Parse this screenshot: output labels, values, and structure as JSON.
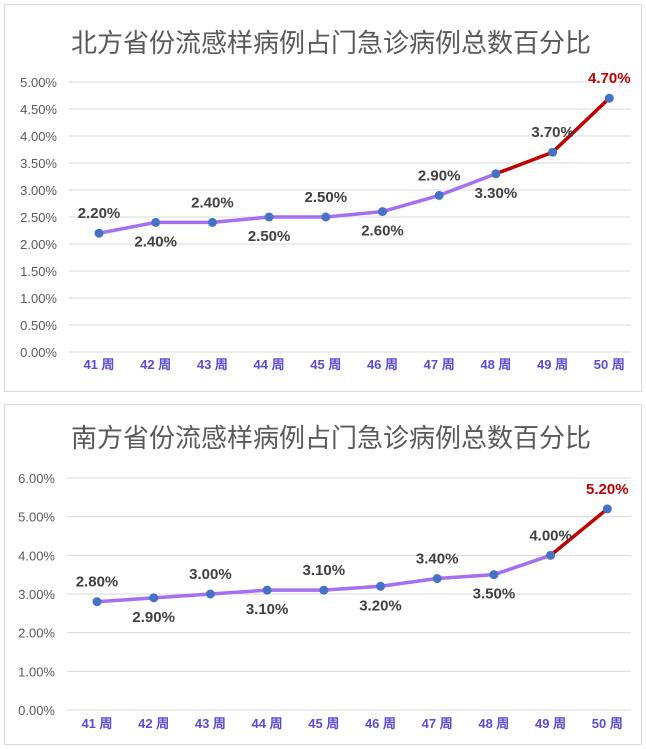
{
  "chart_data": [
    {
      "type": "line",
      "title": "北方省份流感样病例占门急诊病例总数百分比",
      "categories": [
        "41 周",
        "42 周",
        "43 周",
        "44 周",
        "45 周",
        "46 周",
        "47 周",
        "48 周",
        "49 周",
        "50 周"
      ],
      "values": [
        2.2,
        2.4,
        2.4,
        2.5,
        2.5,
        2.6,
        2.9,
        3.3,
        3.7,
        4.7
      ],
      "data_labels": [
        "2.20%",
        "2.40%",
        "2.40%",
        "2.50%",
        "2.50%",
        "2.60%",
        "2.90%",
        "3.30%",
        "3.70%",
        "4.70%"
      ],
      "label_side": [
        "above",
        "below",
        "above",
        "below",
        "above",
        "below",
        "above",
        "below",
        "above",
        "above"
      ],
      "highlight_from_index": 7,
      "highlight_label_index": 9,
      "ylim": [
        0,
        5
      ],
      "yticks": [
        0,
        0.5,
        1,
        1.5,
        2,
        2.5,
        3,
        3.5,
        4,
        4.5,
        5
      ],
      "ytick_labels": [
        "0.00%",
        "0.50%",
        "1.00%",
        "1.50%",
        "2.00%",
        "2.50%",
        "3.00%",
        "3.50%",
        "4.00%",
        "4.50%",
        "5.00%"
      ],
      "grid": true,
      "colors": {
        "line": "#a66ef0",
        "highlight": "#c00000",
        "marker": "#4472c4"
      }
    },
    {
      "type": "line",
      "title": "南方省份流感样病例占门急诊病例总数百分比",
      "categories": [
        "41 周",
        "42 周",
        "43 周",
        "44 周",
        "45 周",
        "46 周",
        "47 周",
        "48 周",
        "49 周",
        "50 周"
      ],
      "values": [
        2.8,
        2.9,
        3.0,
        3.1,
        3.1,
        3.2,
        3.4,
        3.5,
        4.0,
        5.2
      ],
      "data_labels": [
        "2.80%",
        "2.90%",
        "3.00%",
        "3.10%",
        "3.10%",
        "3.20%",
        "3.40%",
        "3.50%",
        "4.00%",
        "5.20%"
      ],
      "label_side": [
        "above",
        "below",
        "above",
        "below",
        "above",
        "below",
        "above",
        "below",
        "above",
        "above"
      ],
      "highlight_from_index": 8,
      "highlight_label_index": 9,
      "ylim": [
        0,
        6
      ],
      "yticks": [
        0,
        1,
        2,
        3,
        4,
        5,
        6
      ],
      "ytick_labels": [
        "0.00%",
        "1.00%",
        "2.00%",
        "3.00%",
        "4.00%",
        "5.00%",
        "6.00%"
      ],
      "grid": true,
      "colors": {
        "line": "#a66ef0",
        "highlight": "#c00000",
        "marker": "#4472c4"
      }
    }
  ]
}
